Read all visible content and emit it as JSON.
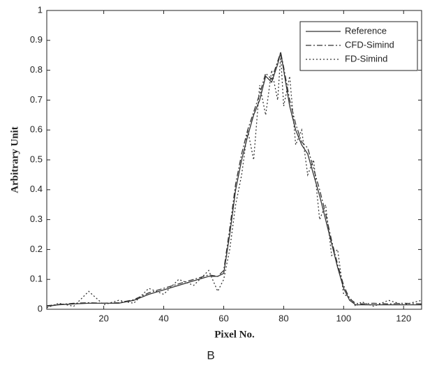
{
  "chart_data": {
    "type": "line",
    "caption": "B",
    "x_label": "Pixel No.",
    "y_label": "Arbitrary Unit",
    "x": [
      1,
      5,
      10,
      15,
      20,
      25,
      30,
      35,
      40,
      45,
      50,
      55,
      58,
      60,
      62,
      64,
      66,
      68,
      70,
      72,
      74,
      76,
      78,
      79,
      80,
      82,
      84,
      86,
      88,
      90,
      92,
      94,
      96,
      98,
      100,
      102,
      104,
      106,
      110,
      115,
      120,
      126
    ],
    "series": [
      {
        "name": "Reference",
        "color": "#333333",
        "style": "solid",
        "values": [
          0.01,
          0.015,
          0.018,
          0.02,
          0.02,
          0.02,
          0.03,
          0.05,
          0.065,
          0.08,
          0.095,
          0.11,
          0.11,
          0.12,
          0.25,
          0.4,
          0.5,
          0.58,
          0.65,
          0.7,
          0.78,
          0.76,
          0.82,
          0.86,
          0.8,
          0.68,
          0.6,
          0.55,
          0.52,
          0.45,
          0.38,
          0.3,
          0.22,
          0.14,
          0.07,
          0.03,
          0.015,
          0.015,
          0.015,
          0.015,
          0.015,
          0.015
        ]
      },
      {
        "name": "CFD-Simind",
        "color": "#333333",
        "style": "dashdot",
        "values": [
          0.012,
          0.016,
          0.02,
          0.022,
          0.02,
          0.022,
          0.032,
          0.055,
          0.07,
          0.085,
          0.1,
          0.115,
          0.11,
          0.13,
          0.27,
          0.42,
          0.52,
          0.6,
          0.66,
          0.72,
          0.79,
          0.77,
          0.83,
          0.86,
          0.81,
          0.7,
          0.62,
          0.56,
          0.54,
          0.47,
          0.4,
          0.32,
          0.23,
          0.15,
          0.08,
          0.035,
          0.02,
          0.018,
          0.02,
          0.018,
          0.02,
          0.018
        ]
      },
      {
        "name": "FD-Simind",
        "color": "#333333",
        "style": "dotted",
        "values": [
          0.005,
          0.02,
          0.01,
          0.06,
          0.015,
          0.03,
          0.02,
          0.07,
          0.05,
          0.1,
          0.08,
          0.13,
          0.06,
          0.1,
          0.2,
          0.35,
          0.45,
          0.6,
          0.5,
          0.75,
          0.65,
          0.8,
          0.7,
          0.85,
          0.68,
          0.78,
          0.55,
          0.6,
          0.45,
          0.5,
          0.3,
          0.35,
          0.18,
          0.2,
          0.05,
          0.04,
          0.01,
          0.025,
          0.01,
          0.03,
          0.015,
          0.03
        ]
      }
    ],
    "xlim": [
      1,
      126
    ],
    "ylim": [
      0,
      1
    ],
    "xticks": [
      20,
      40,
      60,
      80,
      100,
      120
    ],
    "yticks": [
      0,
      0.1,
      0.2,
      0.3,
      0.4,
      0.5,
      0.6,
      0.7,
      0.8,
      0.9,
      1
    ],
    "grid": false,
    "legend": "upper right"
  }
}
